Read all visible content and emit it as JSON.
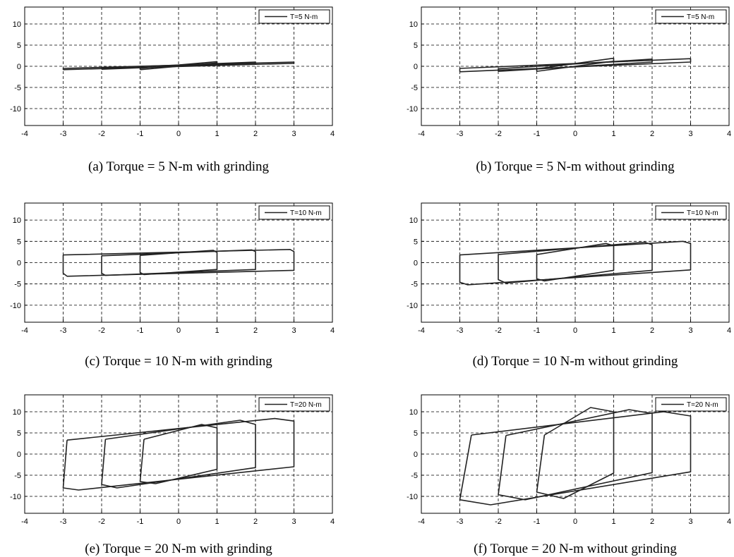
{
  "chart_data": [
    {
      "type": "line",
      "caption": "(a) Torque = 5 N-m with grinding",
      "xlim": [
        -4,
        4
      ],
      "ylim": [
        -14,
        14
      ],
      "xticks": [
        -4,
        -3,
        -2,
        -1,
        0,
        1,
        2,
        3,
        4
      ],
      "yticks": [
        10,
        5,
        0,
        -5,
        -10
      ],
      "grid": true,
      "legend": {
        "position": "top-right",
        "entries": [
          "T=5 N-m"
        ]
      },
      "series": [
        {
          "name": "T=5 N-m",
          "loops": [
            {
              "x": [
                -3,
                3,
                3,
                -3,
                -3
              ],
              "y": [
                -0.8,
                0.7,
                1.0,
                -0.5,
                -0.8
              ]
            },
            {
              "x": [
                -2,
                2,
                2,
                -2,
                -2
              ],
              "y": [
                -0.7,
                0.7,
                1.0,
                -0.4,
                -0.7
              ]
            },
            {
              "x": [
                -1,
                1,
                1,
                -1,
                -1
              ],
              "y": [
                -0.8,
                0.8,
                1.1,
                -0.5,
                -0.8
              ]
            }
          ]
        }
      ]
    },
    {
      "type": "line",
      "caption": "(b) Torque = 5 N-m without grinding",
      "xlim": [
        -4,
        4
      ],
      "ylim": [
        -14,
        14
      ],
      "xticks": [
        -4,
        -3,
        -2,
        -1,
        0,
        1,
        2,
        3,
        4
      ],
      "yticks": [
        10,
        5,
        0,
        -5,
        -10
      ],
      "grid": true,
      "legend": {
        "position": "top-right",
        "entries": [
          "T=5 N-m"
        ]
      },
      "series": [
        {
          "name": "T=5 N-m",
          "loops": [
            {
              "x": [
                -3,
                3,
                3,
                -3,
                -3
              ],
              "y": [
                -1.3,
                1.0,
                1.8,
                -0.5,
                -1.3
              ]
            },
            {
              "x": [
                -2,
                2,
                2,
                -2,
                -2
              ],
              "y": [
                -1.2,
                1.0,
                1.7,
                -0.6,
                -1.2
              ]
            },
            {
              "x": [
                -1,
                1,
                1,
                -1,
                -1
              ],
              "y": [
                -1.2,
                1.2,
                1.9,
                -0.6,
                -1.2
              ]
            }
          ]
        }
      ]
    },
    {
      "type": "line",
      "caption": "(c) Torque = 10 N-m with grinding",
      "xlim": [
        -4,
        4
      ],
      "ylim": [
        -14,
        14
      ],
      "xticks": [
        -4,
        -3,
        -2,
        -1,
        0,
        1,
        2,
        3,
        4
      ],
      "yticks": [
        10,
        5,
        0,
        -5,
        -10
      ],
      "grid": true,
      "legend": {
        "position": "top-right",
        "entries": [
          "T=10 N-m"
        ]
      },
      "series": [
        {
          "name": "T=10 N-m",
          "loops": [
            {
              "x": [
                -3,
                -3,
                -2.9,
                3,
                3,
                2.9,
                -3
              ],
              "y": [
                1.8,
                -2.5,
                -3.2,
                -1.8,
                2.6,
                3.1,
                1.8
              ]
            },
            {
              "x": [
                -2,
                -2,
                -1.9,
                2,
                2,
                1.9,
                -2
              ],
              "y": [
                1.6,
                -2.5,
                -3.0,
                -1.6,
                2.6,
                3.0,
                1.6
              ]
            },
            {
              "x": [
                -1,
                -1,
                -0.9,
                1,
                1,
                0.9,
                -1
              ],
              "y": [
                1.7,
                -2.3,
                -2.8,
                -1.6,
                2.4,
                2.9,
                1.7
              ]
            }
          ]
        }
      ]
    },
    {
      "type": "line",
      "caption": "(d) Torque = 10 N-m without grinding",
      "xlim": [
        -4,
        4
      ],
      "ylim": [
        -14,
        14
      ],
      "xticks": [
        -4,
        -3,
        -2,
        -1,
        0,
        1,
        2,
        3,
        4
      ],
      "yticks": [
        10,
        5,
        0,
        -5,
        -10
      ],
      "grid": true,
      "legend": {
        "position": "top-right",
        "entries": [
          "T=10 N-m"
        ]
      },
      "series": [
        {
          "name": "T=10 N-m",
          "loops": [
            {
              "x": [
                -3,
                -3,
                -2.8,
                3,
                3,
                2.8,
                -3
              ],
              "y": [
                1.8,
                -4.6,
                -5.2,
                -1.7,
                4.5,
                5.0,
                1.8
              ]
            },
            {
              "x": [
                -2,
                -2,
                -1.8,
                2,
                2,
                1.8,
                -2
              ],
              "y": [
                1.9,
                -4.0,
                -4.8,
                -1.8,
                4.2,
                4.8,
                1.9
              ]
            },
            {
              "x": [
                -1,
                -1,
                -0.8,
                1,
                1,
                0.8,
                -1
              ],
              "y": [
                1.9,
                -3.8,
                -4.3,
                -1.8,
                4.0,
                4.5,
                1.9
              ]
            }
          ]
        }
      ]
    },
    {
      "type": "line",
      "caption": "(e) Torque = 20 N-m with grinding",
      "xlim": [
        -4,
        4
      ],
      "ylim": [
        -14,
        14
      ],
      "xticks": [
        -4,
        -3,
        -2,
        -1,
        0,
        1,
        2,
        3,
        4
      ],
      "yticks": [
        10,
        5,
        0,
        -5,
        -10
      ],
      "grid": true,
      "legend": {
        "position": "top-right",
        "entries": [
          "T=20 N-m"
        ]
      },
      "series": [
        {
          "name": "T=20 N-m",
          "loops": [
            {
              "x": [
                -2.9,
                -3,
                -2.6,
                3,
                3,
                2.5,
                -2.9
              ],
              "y": [
                3.3,
                -8.0,
                -8.5,
                -3.0,
                7.8,
                8.4,
                3.3
              ]
            },
            {
              "x": [
                -1.9,
                -2,
                -1.6,
                2,
                2,
                1.6,
                -1.9
              ],
              "y": [
                3.5,
                -7.2,
                -8.0,
                -3.2,
                7.0,
                8.0,
                3.5
              ]
            },
            {
              "x": [
                -0.9,
                -1,
                -0.6,
                1,
                1,
                0.6,
                -0.9
              ],
              "y": [
                3.5,
                -6.5,
                -7.0,
                -3.6,
                6.2,
                7.0,
                3.5
              ]
            }
          ]
        }
      ]
    },
    {
      "type": "line",
      "caption": "(f) Torque = 20 N-m without grinding",
      "xlim": [
        -4,
        4
      ],
      "ylim": [
        -14,
        14
      ],
      "xticks": [
        -4,
        -3,
        -2,
        -1,
        0,
        1,
        2,
        3,
        4
      ],
      "yticks": [
        10,
        5,
        0,
        -5,
        -10
      ],
      "grid": true,
      "legend": {
        "position": "top-right",
        "entries": [
          "T=20 N-m"
        ]
      },
      "series": [
        {
          "name": "T=20 N-m",
          "loops": [
            {
              "x": [
                -2.7,
                -3,
                -2.2,
                3,
                3,
                2.3,
                -2.7
              ],
              "y": [
                4.5,
                -10.8,
                -12.0,
                -4.2,
                9.0,
                10.0,
                4.5
              ]
            },
            {
              "x": [
                -1.8,
                -2,
                -1.3,
                2,
                2,
                1.4,
                -1.8
              ],
              "y": [
                4.4,
                -9.6,
                -10.8,
                -4.4,
                9.6,
                10.5,
                4.4
              ]
            },
            {
              "x": [
                -0.8,
                -1,
                -0.3,
                1,
                1,
                0.4,
                -0.8
              ],
              "y": [
                4.5,
                -9.0,
                -10.5,
                -4.5,
                10.0,
                11.0,
                4.5
              ]
            }
          ]
        }
      ]
    }
  ]
}
